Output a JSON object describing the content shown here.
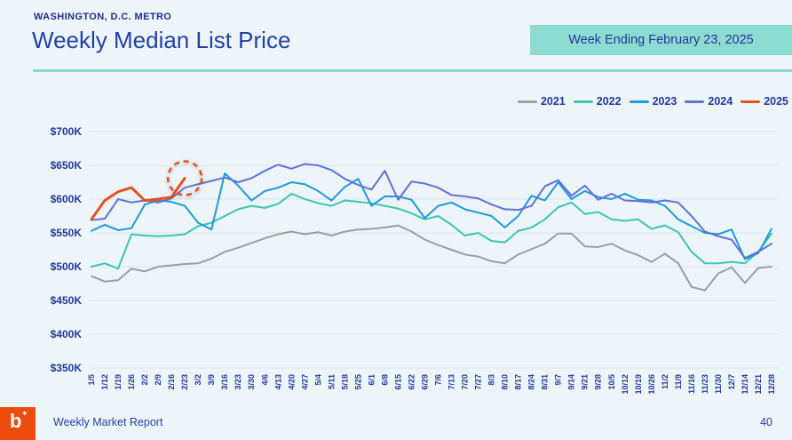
{
  "header": {
    "kicker": "WASHINGTON, D.C. METRO",
    "title": "Weekly Median List Price",
    "badge": "Week Ending February 23, 2025"
  },
  "footer": {
    "logo_letter": "b",
    "logo_spark": "✦",
    "report_name": "Weekly Market Report",
    "page_number": "40"
  },
  "colors": {
    "background": "#edf5f9",
    "navy_text": "#213a9a",
    "title_text": "#2340a5",
    "teal_rule": "#85d9cf",
    "badge_bg": "#8cdcd2",
    "gridline": "#d9e6ef",
    "logo_orange": "#ec4d0d",
    "annotation": "#e8501e"
  },
  "chart_data": {
    "type": "line",
    "title": "Weekly Median List Price",
    "xlabel": "",
    "ylabel": "",
    "grid": true,
    "legend_position": "top-right",
    "ylim": [
      350,
      700
    ],
    "y_step": 50,
    "y_unit_format": "$#K",
    "x": [
      "1/5",
      "1/12",
      "1/19",
      "1/26",
      "2/2",
      "2/9",
      "2/16",
      "2/23",
      "3/2",
      "3/9",
      "3/16",
      "3/23",
      "3/30",
      "4/6",
      "4/13",
      "4/20",
      "4/27",
      "5/4",
      "5/11",
      "5/18",
      "5/25",
      "6/1",
      "6/8",
      "6/15",
      "6/22",
      "6/29",
      "7/6",
      "7/13",
      "7/20",
      "7/27",
      "8/3",
      "8/10",
      "8/17",
      "8/24",
      "8/31",
      "9/7",
      "9/14",
      "9/21",
      "9/28",
      "10/5",
      "10/12",
      "10/19",
      "10/26",
      "11/2",
      "11/9",
      "11/16",
      "11/23",
      "11/30",
      "12/7",
      "12/14",
      "12/21",
      "12/28"
    ],
    "series": [
      {
        "name": "2021",
        "color": "#999fa4",
        "emphasis": false,
        "values": [
          486,
          478,
          480,
          497,
          493,
          500,
          502,
          504,
          505,
          512,
          522,
          528,
          535,
          542,
          548,
          552,
          548,
          551,
          546,
          552,
          555,
          556,
          558,
          561,
          552,
          540,
          532,
          525,
          518,
          515,
          508,
          505,
          518,
          526,
          534,
          549,
          549,
          530,
          529,
          534,
          524,
          517,
          507,
          519,
          505,
          470,
          465,
          490,
          499,
          476,
          498,
          500
        ]
      },
      {
        "name": "2022",
        "color": "#3cc6ad",
        "emphasis": false,
        "values": [
          500,
          505,
          497,
          548,
          546,
          545,
          546,
          548,
          560,
          565,
          575,
          585,
          590,
          587,
          593,
          608,
          600,
          594,
          590,
          598,
          596,
          594,
          590,
          586,
          579,
          570,
          575,
          562,
          546,
          550,
          538,
          536,
          553,
          558,
          570,
          588,
          595,
          578,
          581,
          570,
          568,
          570,
          556,
          561,
          551,
          522,
          505,
          505,
          507,
          505,
          522,
          549
        ]
      },
      {
        "name": "2023",
        "color": "#1d9bd8",
        "emphasis": false,
        "values": [
          553,
          562,
          554,
          557,
          592,
          598,
          596,
          590,
          565,
          555,
          638,
          620,
          598,
          612,
          617,
          625,
          622,
          612,
          598,
          618,
          630,
          590,
          604,
          604,
          599,
          572,
          590,
          595,
          585,
          580,
          575,
          558,
          575,
          605,
          598,
          625,
          600,
          612,
          603,
          600,
          608,
          599,
          598,
          590,
          570,
          560,
          550,
          548,
          555,
          511,
          520,
          556
        ]
      },
      {
        "name": "2024",
        "color": "#6172d3",
        "emphasis": false,
        "values": [
          569,
          571,
          600,
          595,
          598,
          595,
          601,
          617,
          622,
          627,
          632,
          625,
          631,
          642,
          651,
          645,
          652,
          650,
          643,
          630,
          621,
          614,
          642,
          599,
          626,
          623,
          617,
          606,
          604,
          601,
          592,
          585,
          584,
          590,
          619,
          628,
          605,
          620,
          599,
          608,
          598,
          597,
          595,
          598,
          595,
          575,
          552,
          545,
          540,
          513,
          522,
          534
        ]
      },
      {
        "name": "2025",
        "color": "#e8501e",
        "emphasis": true,
        "values": [
          570,
          598,
          611,
          617,
          598,
          600,
          603,
          631
        ]
      }
    ],
    "annotation": {
      "type": "dashed-circle",
      "series": "2025",
      "x": "2/23",
      "value": 631,
      "color": "#e8501e"
    }
  }
}
